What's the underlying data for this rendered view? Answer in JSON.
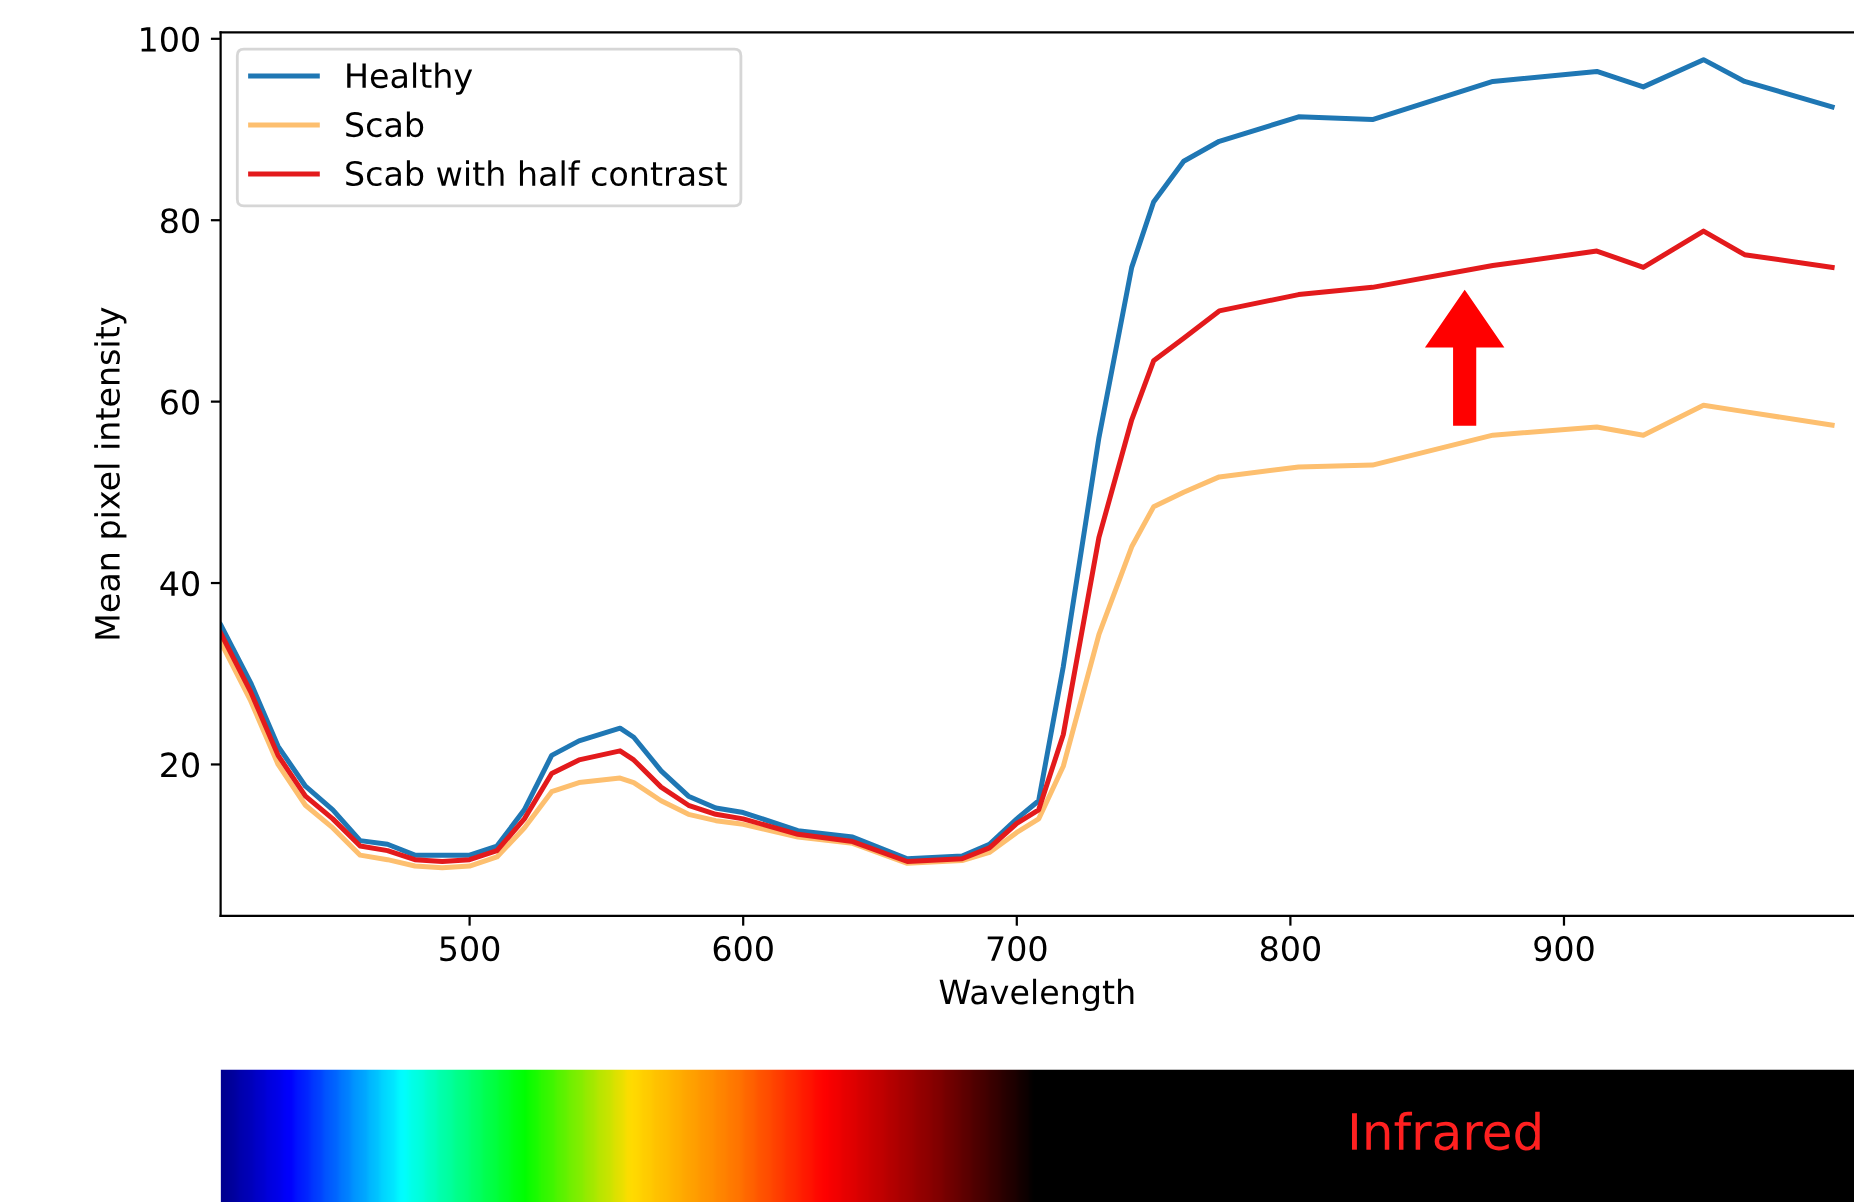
{
  "chart_data": {
    "type": "line",
    "xlabel": "Wavelength",
    "ylabel": "Mean pixel intensity",
    "x": [
      409,
      420,
      430,
      440,
      450,
      460,
      470,
      480,
      490,
      500,
      510,
      520,
      530,
      540,
      555,
      560,
      570,
      580,
      590,
      600,
      620,
      640,
      660,
      680,
      690,
      700,
      708,
      717,
      730,
      742,
      750,
      761,
      774,
      803,
      830,
      874,
      912,
      929,
      951,
      966,
      998
    ],
    "series": [
      {
        "name": "Healthy",
        "color": "#1f77b4",
        "values": [
          35.4,
          29,
          22,
          17.6,
          15,
          11.6,
          11.2,
          10,
          10,
          10,
          11,
          15,
          21,
          22.6,
          24,
          23,
          19.3,
          16.5,
          15.2,
          14.7,
          12.7,
          12,
          9.6,
          9.9,
          11.2,
          14,
          16,
          30.8,
          56,
          74.8,
          82,
          86.5,
          88.7,
          91.4,
          91.1,
          95.3,
          96.4,
          94.7,
          97.7,
          95.3,
          92.5
        ]
      },
      {
        "name": "Scab",
        "color": "#fdbf6f",
        "values": [
          33.5,
          27,
          20,
          15.5,
          13,
          10,
          9.5,
          8.8,
          8.6,
          8.8,
          9.8,
          13,
          17,
          18,
          18.5,
          18,
          16,
          14.5,
          13.8,
          13.4,
          12,
          11.3,
          9.1,
          9.4,
          10.3,
          12.5,
          14,
          19.8,
          34.3,
          44,
          48.4,
          50,
          51.7,
          52.8,
          53,
          56.3,
          57.2,
          56.3,
          59.6,
          58.9,
          57.4
        ]
      },
      {
        "name": "Scab with half contrast",
        "color": "#e31a1c",
        "values": [
          34.5,
          28,
          21,
          16.5,
          14,
          11,
          10.5,
          9.5,
          9.3,
          9.5,
          10.5,
          14,
          19,
          20.5,
          21.5,
          20.5,
          17.5,
          15.5,
          14.5,
          14,
          12.3,
          11.5,
          9.3,
          9.6,
          10.8,
          13.5,
          15,
          23.3,
          45,
          58,
          64.5,
          67,
          70,
          71.8,
          72.6,
          75,
          76.6,
          74.8,
          78.8,
          76.2,
          74.8
        ]
      }
    ],
    "xlim": [
      409,
      1006
    ],
    "ylim": [
      3.3,
      100.7
    ],
    "xticks": [
      500,
      600,
      700,
      800,
      900
    ],
    "yticks": [
      20,
      40,
      60,
      80,
      100
    ],
    "grid": false,
    "legend": "top left",
    "marker": "none",
    "line_style": "solid",
    "annotations": [
      "Infrared"
    ]
  }
}
